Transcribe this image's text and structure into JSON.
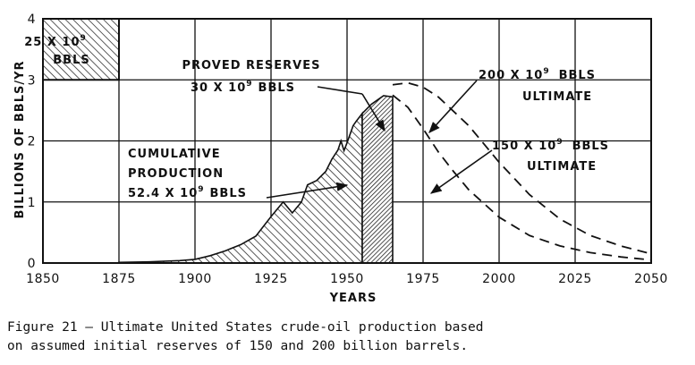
{
  "chart_data": {
    "type": "area",
    "xlabel": "YEARS",
    "ylabel": "BILLIONS OF BBLS/YR",
    "xlim": [
      1850,
      2050
    ],
    "ylim": [
      0,
      4
    ],
    "x_ticks": [
      "1850",
      "1875",
      "1900",
      "1925",
      "1950",
      "1975",
      "2000",
      "2025",
      "2050"
    ],
    "y_ticks": [
      "0",
      "1",
      "2",
      "3",
      "4"
    ],
    "grid": true,
    "series": [
      {
        "role": "cumulative_production",
        "x": [
          1875,
          1885,
          1895,
          1900,
          1905,
          1910,
          1915,
          1920,
          1925,
          1929,
          1932,
          1935,
          1937,
          1940,
          1943,
          1945,
          1947,
          1948,
          1949,
          1950,
          1952,
          1953,
          1955
        ],
        "y": [
          0.01,
          0.02,
          0.04,
          0.06,
          0.12,
          0.2,
          0.3,
          0.44,
          0.76,
          1.0,
          0.82,
          1.0,
          1.28,
          1.35,
          1.5,
          1.7,
          1.85,
          2.0,
          1.84,
          1.97,
          2.25,
          2.32,
          2.45
        ]
      },
      {
        "role": "proved_reserves",
        "x": [
          1955,
          1958,
          1962,
          1965
        ],
        "y": [
          2.45,
          2.6,
          2.74,
          2.72
        ]
      },
      {
        "role": "ultimate_200",
        "x": [
          1965,
          1970,
          1975,
          1980,
          1990,
          2000,
          2010,
          2020,
          2030,
          2040,
          2050
        ],
        "y": [
          2.92,
          2.95,
          2.88,
          2.72,
          2.25,
          1.65,
          1.12,
          0.72,
          0.45,
          0.28,
          0.15
        ]
      },
      {
        "role": "ultimate_150",
        "x": [
          1965,
          1970,
          1975,
          1980,
          1985,
          1990,
          2000,
          2010,
          2020,
          2030,
          2040,
          2050
        ],
        "y": [
          2.75,
          2.55,
          2.2,
          1.82,
          1.5,
          1.2,
          0.75,
          0.45,
          0.28,
          0.17,
          0.1,
          0.05
        ]
      }
    ],
    "inset_box": {
      "label_line1": "25 X 10",
      "sup": "9",
      "label_line2": "BBLS",
      "x": [
        1850,
        1875
      ],
      "y": [
        3,
        4
      ]
    },
    "annotations": {
      "proved_reserves": {
        "line1": "PROVED RESERVES",
        "line2": "30 X 10",
        "sup": "9",
        "unit": "BBLS"
      },
      "cumulative": {
        "line1": "CUMULATIVE",
        "line2": "PRODUCTION",
        "line3": "52.4 X 10",
        "sup": "9",
        "unit": "BBLS"
      },
      "ultimate_200": {
        "line1": "200 X 10",
        "sup": "9",
        "unit": "BBLS",
        "line2": "ULTIMATE"
      },
      "ultimate_150": {
        "line1": "150 X 10",
        "sup": "9",
        "unit": "BBLS",
        "line2": "ULTIMATE"
      }
    }
  },
  "caption": {
    "line1": "Figure 21 – Ultimate United States crude-oil production based",
    "line2": "on assumed initial reserves of 150 and 200 billion barrels."
  }
}
